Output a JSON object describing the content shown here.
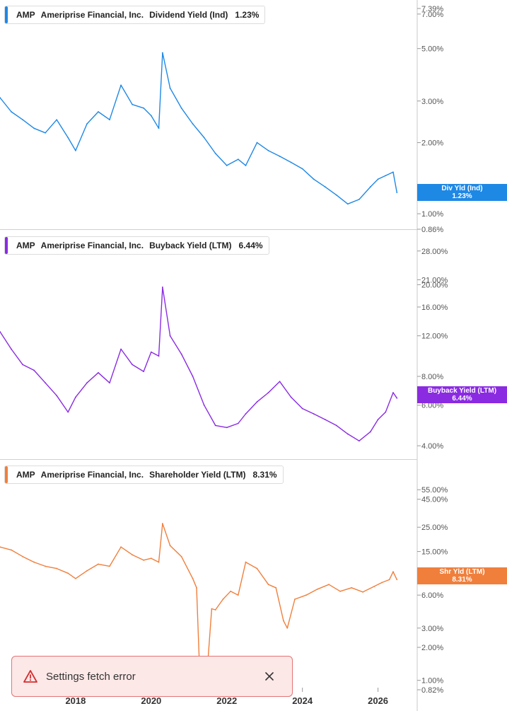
{
  "panels": [
    {
      "ticker": "AMP",
      "company": "Ameriprise Financial, Inc.",
      "metric": "Dividend Yield (Ind)",
      "value": "1.23%",
      "color": "#1e88e5",
      "badge": {
        "label": "Div Yld (Ind)",
        "value": "1.23%"
      }
    },
    {
      "ticker": "AMP",
      "company": "Ameriprise Financial, Inc.",
      "metric": "Buyback Yield (LTM)",
      "value": "6.44%",
      "color": "#8a2be2",
      "badge": {
        "label": "Buyback Yield (LTM)",
        "value": "6.44%"
      }
    },
    {
      "ticker": "AMP",
      "company": "Ameriprise Financial, Inc.",
      "metric": "Shareholder Yield (LTM)",
      "value": "8.31%",
      "color": "#f07f3c",
      "badge": {
        "label": "Shr Yld (LTM)",
        "value": "8.31%"
      }
    }
  ],
  "toast": {
    "message": "Settings fetch error"
  },
  "chart_data": [
    {
      "type": "line",
      "yscale": "log",
      "ylim": [
        0.86,
        7.39
      ],
      "yticks": [
        "7.39%",
        "7.00%",
        "5.00%",
        "3.00%",
        "2.00%",
        "1.00%",
        "0.86%"
      ],
      "ytick_values": [
        7.39,
        7.0,
        5.0,
        3.0,
        2.0,
        1.0,
        0.86
      ],
      "series": [
        {
          "name": "Dividend Yield (Ind)",
          "x": [
            2016.0,
            2016.3,
            2016.6,
            2016.9,
            2017.2,
            2017.5,
            2017.8,
            2018.0,
            2018.3,
            2018.6,
            2018.9,
            2019.2,
            2019.5,
            2019.8,
            2020.0,
            2020.2,
            2020.3,
            2020.5,
            2020.8,
            2021.1,
            2021.4,
            2021.7,
            2022.0,
            2022.3,
            2022.5,
            2022.8,
            2023.1,
            2023.4,
            2023.7,
            2024.0,
            2024.3,
            2024.6,
            2024.9,
            2025.2,
            2025.5,
            2025.8,
            2026.0,
            2026.2,
            2026.4,
            2026.5
          ],
          "y": [
            3.1,
            2.7,
            2.5,
            2.3,
            2.2,
            2.5,
            2.1,
            1.85,
            2.4,
            2.7,
            2.5,
            3.5,
            2.9,
            2.8,
            2.6,
            2.3,
            4.8,
            3.4,
            2.8,
            2.4,
            2.1,
            1.8,
            1.6,
            1.7,
            1.6,
            2.0,
            1.85,
            1.75,
            1.65,
            1.55,
            1.4,
            1.3,
            1.2,
            1.1,
            1.15,
            1.3,
            1.4,
            1.45,
            1.5,
            1.23
          ]
        }
      ],
      "last_value": "1.23%"
    },
    {
      "type": "line",
      "yscale": "log",
      "ylim": [
        3.5,
        30
      ],
      "yticks": [
        "28.00%",
        "21.00%",
        "20.00%",
        "16.00%",
        "12.00%",
        "8.00%",
        "6.00%",
        "4.00%"
      ],
      "ytick_values": [
        28,
        21,
        20,
        16,
        12,
        8,
        6,
        4
      ],
      "series": [
        {
          "name": "Buyback Yield (LTM)",
          "x": [
            2016.0,
            2016.3,
            2016.6,
            2016.9,
            2017.2,
            2017.5,
            2017.8,
            2018.0,
            2018.3,
            2018.6,
            2018.9,
            2019.2,
            2019.5,
            2019.8,
            2020.0,
            2020.2,
            2020.3,
            2020.5,
            2020.8,
            2021.1,
            2021.4,
            2021.7,
            2022.0,
            2022.3,
            2022.5,
            2022.8,
            2023.1,
            2023.4,
            2023.7,
            2024.0,
            2024.3,
            2024.6,
            2024.9,
            2025.2,
            2025.5,
            2025.8,
            2026.0,
            2026.2,
            2026.4,
            2026.5
          ],
          "y": [
            12.5,
            10.5,
            9.0,
            8.5,
            7.5,
            6.6,
            5.6,
            6.5,
            7.5,
            8.3,
            7.5,
            10.5,
            9.0,
            8.4,
            10.2,
            9.8,
            19.5,
            12.0,
            10.0,
            8.0,
            6.0,
            4.9,
            4.8,
            5.0,
            5.5,
            6.2,
            6.8,
            7.6,
            6.5,
            5.8,
            5.5,
            5.2,
            4.9,
            4.5,
            4.2,
            4.6,
            5.2,
            5.6,
            6.8,
            6.44
          ]
        }
      ],
      "last_value": "6.44%"
    },
    {
      "type": "line",
      "yscale": "log",
      "ylim": [
        0.82,
        70
      ],
      "yticks": [
        "55.00%",
        "45.00%",
        "25.00%",
        "15.00%",
        "8.00%",
        "6.00%",
        "3.00%",
        "2.00%",
        "1.00%",
        "0.82%"
      ],
      "ytick_values": [
        55,
        45,
        25,
        15,
        8,
        6,
        3,
        2,
        1,
        0.82
      ],
      "series": [
        {
          "name": "Shareholder Yield (LTM)",
          "x": [
            2016.0,
            2016.3,
            2016.6,
            2016.9,
            2017.2,
            2017.5,
            2017.8,
            2018.0,
            2018.3,
            2018.6,
            2018.9,
            2019.2,
            2019.5,
            2019.8,
            2020.0,
            2020.2,
            2020.3,
            2020.5,
            2020.8,
            2021.1,
            2021.2,
            2021.3,
            2021.5,
            2021.6,
            2021.7,
            2021.9,
            2022.1,
            2022.3,
            2022.5,
            2022.8,
            2023.1,
            2023.3,
            2023.5,
            2023.6,
            2023.8,
            2024.1,
            2024.4,
            2024.7,
            2025.0,
            2025.3,
            2025.6,
            2025.9,
            2026.1,
            2026.3,
            2026.4,
            2026.5
          ],
          "y": [
            16.5,
            15.5,
            13.5,
            12.0,
            11.0,
            10.5,
            9.5,
            8.5,
            10.0,
            11.5,
            11.0,
            16.5,
            14.0,
            12.5,
            13.0,
            12.0,
            27.0,
            17.0,
            13.5,
            8.5,
            7.0,
            0.82,
            1.5,
            4.5,
            4.4,
            5.5,
            6.5,
            6.0,
            12.0,
            10.5,
            7.5,
            7.0,
            3.5,
            3.0,
            5.5,
            6.0,
            6.8,
            7.5,
            6.5,
            7.0,
            6.4,
            7.2,
            7.8,
            8.3,
            9.8,
            8.31
          ]
        }
      ],
      "last_value": "8.31%"
    }
  ],
  "x_axis": {
    "tick_labels": [
      "2018",
      "2020",
      "2022",
      "2024",
      "2026"
    ],
    "tick_values": [
      2018,
      2020,
      2022,
      2024,
      2026
    ],
    "xlim": [
      2016.0,
      2026.7
    ]
  }
}
